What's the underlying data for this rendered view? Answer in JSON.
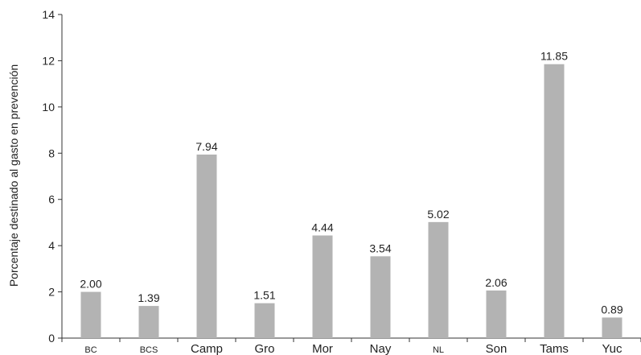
{
  "chart_data": {
    "type": "bar",
    "title": "",
    "xlabel": "",
    "ylabel": "Porcentaje destinado al gasto en prevención",
    "ylim": [
      0,
      14
    ],
    "yticks": [
      0,
      2,
      4,
      6,
      8,
      10,
      12,
      14
    ],
    "categories": [
      "BC",
      "BCS",
      "Camp",
      "Gro",
      "Mor",
      "Nay",
      "NL",
      "Son",
      "Tams",
      "Yuc"
    ],
    "values": [
      2.0,
      1.39,
      7.94,
      1.51,
      4.44,
      3.54,
      5.02,
      2.06,
      11.85,
      0.89
    ],
    "value_labels": [
      "2.00",
      "1.39",
      "7.94",
      "1.51",
      "4.44",
      "3.54",
      "5.02",
      "2.06",
      "11.85",
      "0.89"
    ],
    "grid": false,
    "legend": "none",
    "bar_color": "#b3b3b3"
  }
}
